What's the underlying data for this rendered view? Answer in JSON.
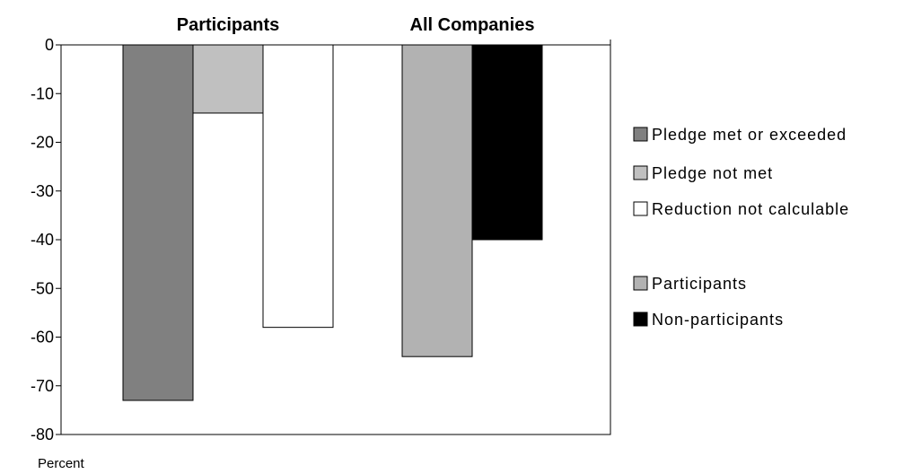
{
  "chart_data": {
    "type": "bar",
    "groups": [
      {
        "title": "Participants",
        "bars": [
          {
            "series": "Pledge met or exceeded",
            "value": -73
          },
          {
            "series": "Pledge not met",
            "value": -14
          },
          {
            "series": "Reduction not calculable",
            "value": -58
          }
        ]
      },
      {
        "title": "All Companies",
        "bars": [
          {
            "series": "Participants",
            "value": -64
          },
          {
            "series": "Non-participants",
            "value": -40
          }
        ]
      }
    ],
    "series": [
      {
        "name": "Pledge met or exceeded",
        "color": "#808080"
      },
      {
        "name": "Pledge not met",
        "color": "#c0c0c0"
      },
      {
        "name": "Reduction not calculable",
        "color": "#ffffff"
      },
      {
        "name": "Participants",
        "color": "#b2b2b2"
      },
      {
        "name": "Non-participants",
        "color": "#000000"
      }
    ],
    "legend_blocks": [
      [
        "Pledge met or exceeded",
        "Pledge not met",
        "Reduction not calculable"
      ],
      [
        "Participants",
        "Non-participants"
      ]
    ],
    "yticks": [
      0,
      -10,
      -20,
      -30,
      -40,
      -50,
      -60,
      -70,
      -80
    ],
    "ylim": [
      -80,
      0
    ],
    "ylabel": "Percent",
    "xlabel": "",
    "grid": false,
    "legend_position": "right"
  }
}
